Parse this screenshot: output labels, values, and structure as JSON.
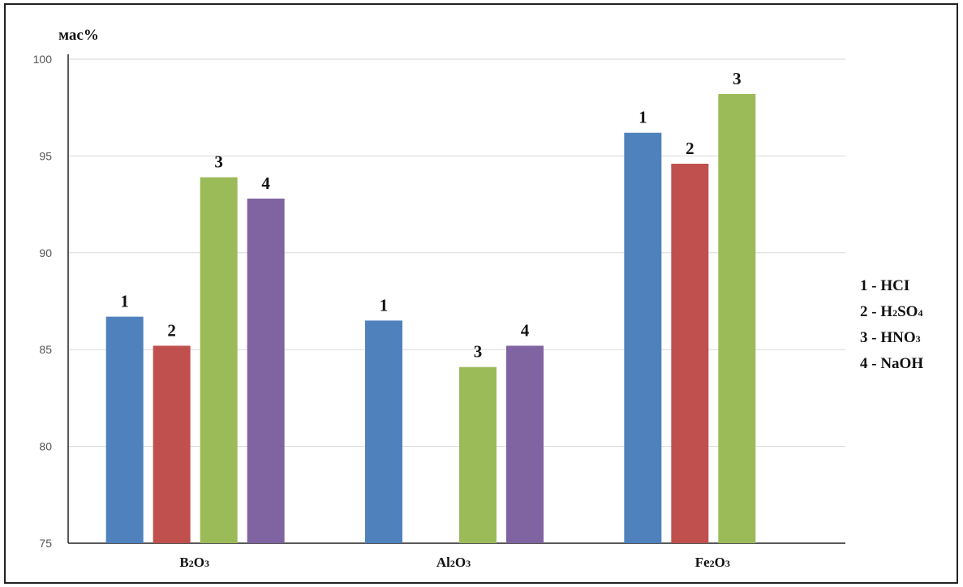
{
  "chart_data": {
    "type": "bar",
    "ylabel": "мас%",
    "ylim": [
      75,
      100
    ],
    "yticks": [
      "75",
      "80",
      "85",
      "90",
      "95",
      "100"
    ],
    "categories": [
      {
        "base": "B",
        "sub1": "2",
        "mid": "O",
        "sub2": "3"
      },
      {
        "base": "Al",
        "sub1": "2",
        "mid": "O",
        "sub2": "3"
      },
      {
        "base": "Fe",
        "sub1": "2",
        "mid": "O",
        "sub2": "3"
      }
    ],
    "series": [
      {
        "name": "1",
        "color": "#4f81bd",
        "values": [
          86.7,
          86.5,
          96.2
        ]
      },
      {
        "name": "2",
        "color": "#c0504d",
        "values": [
          85.2,
          null,
          94.6
        ]
      },
      {
        "name": "3",
        "color": "#9bbb59",
        "values": [
          93.9,
          84.1,
          98.2
        ]
      },
      {
        "name": "4",
        "color": "#8064a2",
        "values": [
          92.8,
          85.2,
          null
        ]
      }
    ],
    "legend": [
      {
        "num": "1",
        "dash": " - ",
        "parts": [
          {
            "t": "HCI"
          }
        ]
      },
      {
        "num": "2",
        "dash": " - ",
        "parts": [
          {
            "t": "H"
          },
          {
            "t": "2",
            "sub": true
          },
          {
            "t": "SO"
          },
          {
            "t": "4",
            "sub": true
          }
        ]
      },
      {
        "num": "3",
        "dash": " - ",
        "parts": [
          {
            "t": "HNO"
          },
          {
            "t": "3",
            "sub": true
          }
        ]
      },
      {
        "num": "4",
        "dash": " - ",
        "parts": [
          {
            "t": "NaOH"
          }
        ]
      }
    ],
    "legend_position": "right",
    "grid": true
  }
}
